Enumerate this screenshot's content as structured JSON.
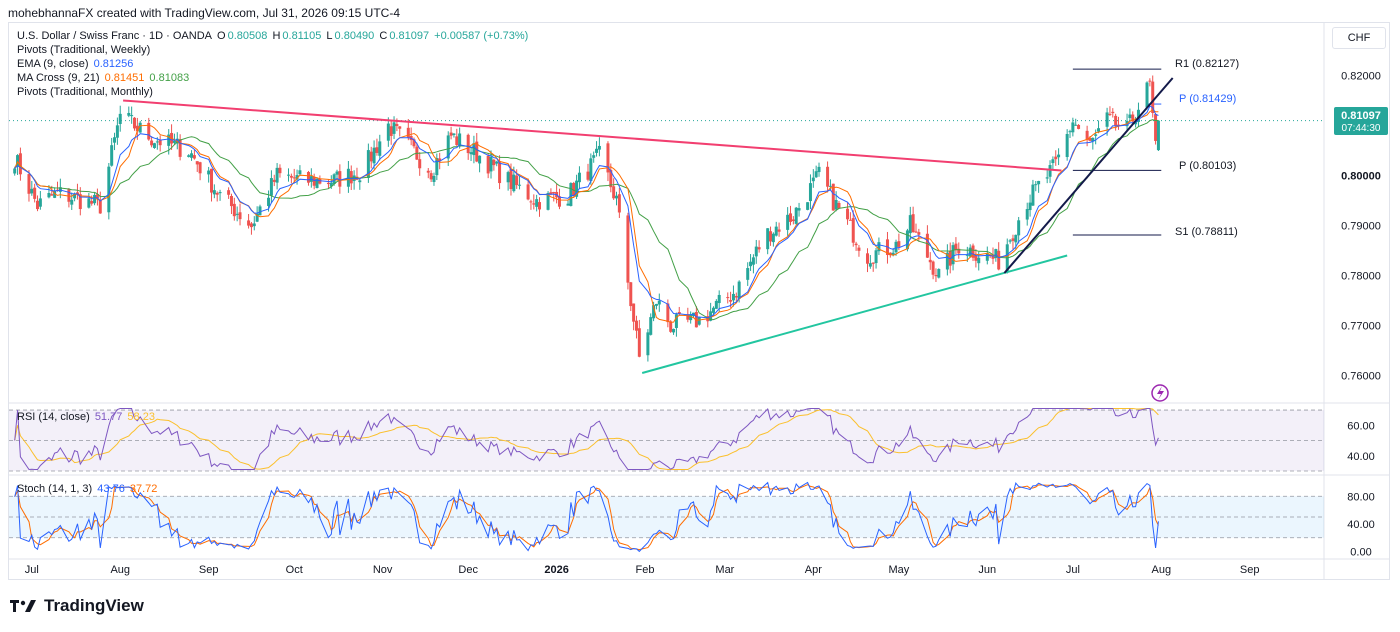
{
  "header": {
    "attribution": "mohebhannaFX created with TradingView.com, Jul 31, 2026 09:15 UTC-4"
  },
  "legend": {
    "symbol": "U.S. Dollar / Swiss Franc · 1D · OANDA",
    "o_label": "O",
    "o": "0.80508",
    "h_label": "H",
    "h": "0.81105",
    "l_label": "L",
    "l": "0.80490",
    "c_label": "C",
    "c": "0.81097",
    "change": "+0.00587 (+0.73%)",
    "pivots_weekly": "Pivots (Traditional, Weekly)",
    "ema_label": "EMA (9, close)",
    "ema_value": "0.81256",
    "ma_cross_label": "MA Cross (9, 21)",
    "ma_fast": "0.81451",
    "ma_slow": "0.81083",
    "pivots_monthly": "Pivots (Traditional, Monthly)"
  },
  "currency_button": "CHF",
  "price_badge": {
    "price": "0.81097",
    "countdown": "07:44:30"
  },
  "pivot_labels": {
    "r1": "R1 (0.82127)",
    "p_weekly": "P (0.81429)",
    "p_monthly": "P (0.80103)",
    "s1": "S1 (0.78811)"
  },
  "rsi_legend": {
    "label": "RSI (14, close)",
    "value": "51.77",
    "ma": "58.23"
  },
  "stoch_legend": {
    "label": "Stoch (14, 1, 3)",
    "k": "43.76",
    "d": "37.72"
  },
  "brand": "TradingView",
  "colors": {
    "up": "#26a69a",
    "down": "#ef5350",
    "ema": "#2962ff",
    "ma_fast": "#ff6d00",
    "ma_slow": "#43a047",
    "resistance": "#f23f70",
    "support": "#22c6a0",
    "channel": "#131a4a",
    "rsi": "#7e57c2",
    "rsi_ma": "#fbc02d",
    "stoch_k": "#2962ff",
    "stoch_d": "#ff6d00"
  },
  "chart_data": {
    "type": "candlestick",
    "price_axis": {
      "ticks": [
        "0.82000",
        "0.81000",
        "0.80000",
        "0.79000",
        "0.78000",
        "0.77000",
        "0.76000"
      ],
      "range": [
        0.7545,
        0.8305
      ]
    },
    "time_axis": {
      "ticks": [
        "Jul",
        "Aug",
        "Sep",
        "Oct",
        "Nov",
        "Dec",
        "2026",
        "Feb",
        "Mar",
        "Apr",
        "May",
        "Jun",
        "Jul",
        "Aug",
        "Sep"
      ]
    },
    "waypoints": [
      {
        "t": "2025-06-25",
        "price": 0.8035
      },
      {
        "t": "2025-07-03",
        "price": 0.794
      },
      {
        "t": "2025-07-10",
        "price": 0.7965
      },
      {
        "t": "2025-07-25",
        "price": 0.794
      },
      {
        "t": "2025-08-01",
        "price": 0.812
      },
      {
        "t": "2025-08-12",
        "price": 0.8075
      },
      {
        "t": "2025-08-25",
        "price": 0.805
      },
      {
        "t": "2025-09-05",
        "price": 0.796
      },
      {
        "t": "2025-09-16",
        "price": 0.79
      },
      {
        "t": "2025-09-25",
        "price": 0.8
      },
      {
        "t": "2025-10-05",
        "price": 0.799
      },
      {
        "t": "2025-10-15",
        "price": 0.799
      },
      {
        "t": "2025-10-25",
        "price": 0.801
      },
      {
        "t": "2025-11-03",
        "price": 0.81
      },
      {
        "t": "2025-11-10",
        "price": 0.806
      },
      {
        "t": "2025-11-18",
        "price": 0.801
      },
      {
        "t": "2025-11-25",
        "price": 0.808
      },
      {
        "t": "2025-12-05",
        "price": 0.804
      },
      {
        "t": "2025-12-15",
        "price": 0.799
      },
      {
        "t": "2025-12-25",
        "price": 0.795
      },
      {
        "t": "2026-01-05",
        "price": 0.796
      },
      {
        "t": "2026-01-16",
        "price": 0.804
      },
      {
        "t": "2026-01-22",
        "price": 0.795
      },
      {
        "t": "2026-01-27",
        "price": 0.775
      },
      {
        "t": "2026-01-30",
        "price": 0.7635
      },
      {
        "t": "2026-02-05",
        "price": 0.775
      },
      {
        "t": "2026-02-10",
        "price": 0.77
      },
      {
        "t": "2026-02-20",
        "price": 0.771
      },
      {
        "t": "2026-03-05",
        "price": 0.777
      },
      {
        "t": "2026-03-15",
        "price": 0.788
      },
      {
        "t": "2026-03-25",
        "price": 0.792
      },
      {
        "t": "2026-04-03",
        "price": 0.8
      },
      {
        "t": "2026-04-10",
        "price": 0.793
      },
      {
        "t": "2026-04-20",
        "price": 0.784
      },
      {
        "t": "2026-04-30",
        "price": 0.786
      },
      {
        "t": "2026-05-05",
        "price": 0.79
      },
      {
        "t": "2026-05-15",
        "price": 0.78
      },
      {
        "t": "2026-05-22",
        "price": 0.786
      },
      {
        "t": "2026-06-05",
        "price": 0.783
      },
      {
        "t": "2026-06-15",
        "price": 0.795
      },
      {
        "t": "2026-06-25",
        "price": 0.802
      },
      {
        "t": "2026-07-01",
        "price": 0.811
      },
      {
        "t": "2026-07-07",
        "price": 0.806
      },
      {
        "t": "2026-07-13",
        "price": 0.811
      },
      {
        "t": "2026-07-20",
        "price": 0.809
      },
      {
        "t": "2026-07-25",
        "price": 0.815
      },
      {
        "t": "2026-07-28",
        "price": 0.818
      },
      {
        "t": "2026-07-30",
        "price": 0.805
      },
      {
        "t": "2026-07-31",
        "price": 0.811
      }
    ],
    "levels": {
      "r1": 0.82127,
      "p_weekly": 0.81429,
      "p_monthly": 0.80103,
      "s1": 0.78811,
      "last": 0.81097
    },
    "trendlines": {
      "resistance": [
        {
          "t": "2025-08-02",
          "price": 0.815
        },
        {
          "t": "2026-06-27",
          "price": 0.801
        }
      ],
      "support": [
        {
          "t": "2026-01-31",
          "price": 0.7605
        },
        {
          "t": "2026-06-29",
          "price": 0.784
        }
      ],
      "channel": [
        {
          "t": "2026-06-07",
          "price": 0.7805
        },
        {
          "t": "2026-08-05",
          "price": 0.8195
        }
      ]
    },
    "rsi": {
      "ticks": [
        "60.00",
        "40.00"
      ],
      "range": [
        30,
        72
      ],
      "bands": [
        70,
        50,
        30
      ],
      "last": 51.77,
      "ma_last": 58.23
    },
    "stoch": {
      "ticks": [
        "80.00",
        "40.00",
        "0.00"
      ],
      "range": [
        -5,
        105
      ],
      "bands": [
        80,
        50,
        20
      ],
      "k_last": 43.76,
      "d_last": 37.72
    }
  }
}
